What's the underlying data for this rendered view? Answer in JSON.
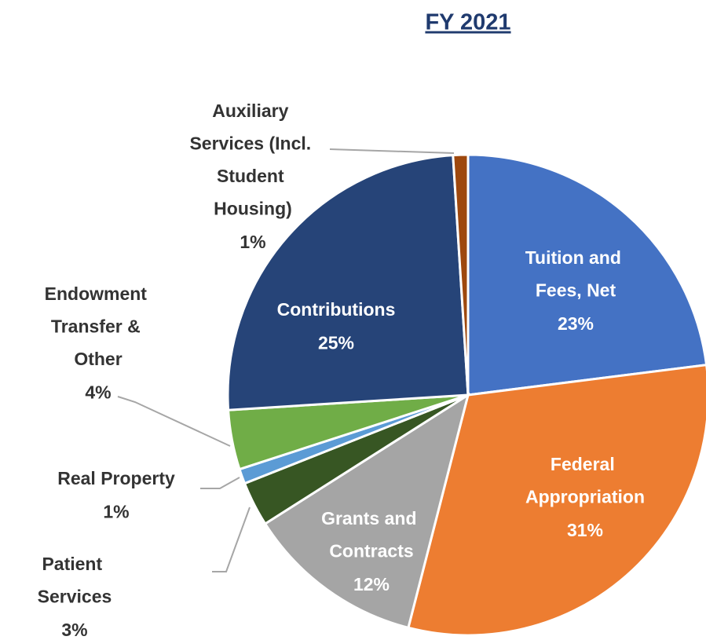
{
  "chart_data": {
    "type": "pie",
    "title": "FY 2021",
    "categories": [
      "Tuition and Fees, Net",
      "Federal Appropriation",
      "Grants and Contracts",
      "Patient Services",
      "Real Property",
      "Endowment Transfer & Other",
      "Contributions",
      "Auxiliary Services (Incl. Student Housing)"
    ],
    "values": [
      23,
      31,
      12,
      3,
      1,
      4,
      25,
      1
    ],
    "value_labels": [
      "23%",
      "31%",
      "12%",
      "3%",
      "1%",
      "4%",
      "25%",
      "1%"
    ],
    "colors": [
      "#4472c4",
      "#ed7d31",
      "#a5a5a5",
      "#375623",
      "#5b9bd5",
      "#70ad47",
      "#264478",
      "#9e480e"
    ]
  }
}
